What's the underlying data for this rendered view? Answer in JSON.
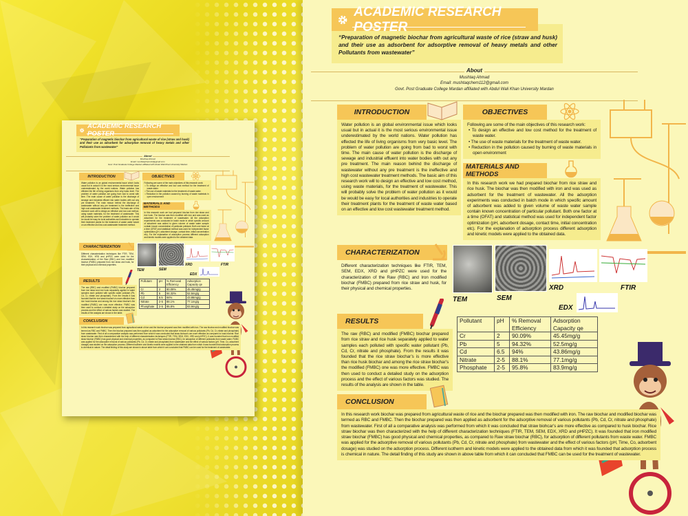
{
  "poster": {
    "title": "ACADEMIC RESEARCH POSTER",
    "subtitle": "“Preparation of magnetic biochar from agricultural waste of rice (straw and husk) and their use as adsorbent for adsorptive removal of heavy metals and other Pollutants  from wastewater”",
    "about": {
      "label": "About",
      "name": "Mushtaq Ahmad",
      "email": "Email: mushtaqchem112@gmail.com",
      "affiliation": "Govt. Post Graduate College Mardan affiliated with Abdul Wali Khan University Mardan"
    },
    "introduction": {
      "heading": "INTRODUCTION",
      "body": "Water pollution is an global environmental issue which looks usual but in actual it is the most serious environmental issue underestimated by the world nations. Water pollution has effected the life of living organisms from very basic level. The problem of water pollution are going from bad to worst with time. The main cause of water pollution is the discharge of sewage and industrial effluent into water bodies with out any pre treatment. The main reason behind the discharge of wastewater without any pre treatment is the ineffective and high cost wastewater treatment methods. The basic aim of this research work will to design an effective and low cost method, using waste materials, for the treatment of wastewater. This will probably solve the problem of water pollution as it would be would be easy for local authorities and industries to operate their treatment plants for the treatment of waste water based on an effective and low cost wastewater treatment method."
    },
    "objectives": {
      "heading": "OBJECTIVES",
      "intro": "Following are some of the main objectives of this research work:",
      "items": [
        "To design an effective and low cost method for the treatment of waste water.",
        "The use of waste materials for the treatment of waste water.",
        "Reduction in the pollution caused by burning of waste materials in open environment"
      ]
    },
    "materials": {
      "heading": "MATERIALS AND METHODS",
      "body": "In this research work we had prepared biochar from rice straw and rice husk. The biochar was then modified with iron and was used as adsorbent for the treatment of wastewater. All the adsorption experiments was conducted in batch mode in which specific amount of adsorbent was added to given volume of waste water sample contain known concentration of particular pollutant. Both one factor at a time (OFAT) and statistical method was used for independent factor optimization (pH, adsorbent dosage, contact time, initial concentration etc). For the explanation of adsorption process different adsorption and kinetic models were applied to the obtained data."
    },
    "characterization": {
      "heading": "CHARACTERIZATION",
      "body": "Different characterization techniques like FTIR, TEM, SEM, EDX, XRD and pHPZC were used for the characterization of the Raw (RBC) and Iron modified biochar (FMBC) prepared from rice straw and husk, for their physical and chemical properties.",
      "labels": {
        "tem": "TEM",
        "sem": "SEM",
        "xrd": "XRD",
        "ftir": "FTIR",
        "edx": "EDX"
      }
    },
    "results": {
      "heading": "RESULTS",
      "body": "The raw (RBC) and modified (FMBC) biochar prepared from rice straw and rice husk separately applied to water samples each polluted with specific water pollutant (Pb, Cd, Cr,  nitrate and phosphate). From the results it was founded that the rice straw biochar’s is more effective than rice husk biochar and among the rice straw biochar’s the modified (FMBC) one was more effective. FMBC was then used to conduct a detailed study on the adsorption process and the effect of various factors was studied. The results of the analysis are shown in the table.",
      "table": {
        "headers": [
          "Pollutant",
          "pH",
          "% Removal Efficiency",
          "Adsorption Capacity qe"
        ],
        "rows": [
          [
            "Cr",
            "2",
            "90.09%",
            "45.45mg/g"
          ],
          [
            "Pb",
            "5",
            "94.32%",
            "52.5mg/g"
          ],
          [
            "Cd",
            "6.5",
            "94%",
            "43.86mg/g"
          ],
          [
            "Nitrate",
            "2-5",
            "88.1%",
            "77.1mg/g"
          ],
          [
            "Phosphate",
            "2-5",
            "95.8%",
            "83.9mg/g"
          ]
        ]
      }
    },
    "conclusion": {
      "heading": "CONCLUSION",
      "body": "In this research work biochar was prepared from agricultural waste of rice and the biochar prepared was then modified with iron. The raw biochar and modified biochar was termed as RBC and FMBC. Then the biochar prepared was then applied as adsorbent for the adsorptive removal of various pollutants (Pb, Cd, Cr,  nitrate and phosphate) from wastewater. First of all a comparative analysis was performed from which it was concluded that straw biohcar’s are more effective as compared to husk biochar. Rice straw biochar was then characterized with the help of different characterization techniques (FTIR, TEM, SEM, EDX, XRD and pHPZC). It was founded that iron modified straw biochar (FMBC) has good physical and chemical properties, as compared to  Raw straw biochar (RBC), for adsorption of different pollutants from waste water. FMBC was applied for the adsorptive removal of various pollutants (Pb, Cd, Cr, nitrate and phosphate) from wastewater and the effect of various factors (pH, Time, Co, adsorbent dosage) was studied on the adsorption process. Different isotherm and kinetic models were applied to the obtained data from which it was founded that adsorption process is chemical in nature. The detail finding of this study are shown in above table from which it can concluded that FMBC can be used for the treatment of wastewater."
    }
  },
  "colors": {
    "background": "#f4e52a",
    "poster": "#fbf7b9",
    "header": "#f6c657",
    "panel": "#f6ec8e"
  }
}
